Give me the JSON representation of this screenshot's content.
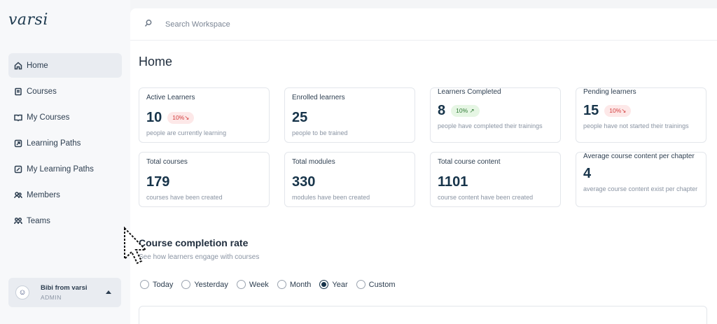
{
  "app": {
    "logo": "varsi"
  },
  "sidebar": {
    "items": [
      {
        "label": "Home",
        "icon": "home-icon",
        "active": true
      },
      {
        "label": "Courses",
        "icon": "book-icon"
      },
      {
        "label": "My Courses",
        "icon": "open-book-icon"
      },
      {
        "label": "Learning Paths",
        "icon": "path-icon"
      },
      {
        "label": "My Learning Paths",
        "icon": "path-book-icon"
      },
      {
        "label": "Members",
        "icon": "members-icon"
      },
      {
        "label": "Teams",
        "icon": "teams-icon"
      }
    ],
    "user": {
      "name": "Bibi from varsi",
      "role": "ADMIN"
    }
  },
  "search": {
    "placeholder": "Search Workspace"
  },
  "page": {
    "title": "Home"
  },
  "cards": [
    {
      "label": "Active Learners",
      "value": "10",
      "badge": "10%↘",
      "badge_tone": "red",
      "desc": "people are currently learning"
    },
    {
      "label": "Enrolled learners",
      "value": "25",
      "desc": "people to be trained"
    },
    {
      "label": "Learners Completed",
      "value": "8",
      "badge": "10% ↗",
      "badge_tone": "green",
      "desc": "people have completed their trainings"
    },
    {
      "label": "Pending learners",
      "value": "15",
      "badge": "10%↘",
      "badge_tone": "red",
      "desc": "people have not started their trainings"
    },
    {
      "label": "Total courses",
      "value": "179",
      "desc": "courses have been created"
    },
    {
      "label": "Total modules",
      "value": "330",
      "desc": "modules have been created"
    },
    {
      "label": "Total course content",
      "value": "1101",
      "desc": "course content have been created"
    },
    {
      "label": "Average course content per chapter",
      "value": "4",
      "desc": "average course content exist per chapter"
    }
  ],
  "completion": {
    "title": "Course completion rate",
    "subtitle": "See how learners engage with courses",
    "ranges": [
      "Today",
      "Yesterday",
      "Week",
      "Month",
      "Year",
      "Custom"
    ],
    "selected": "Year"
  },
  "colors": {
    "brand": "#17344a",
    "badge_red": "#d23b3b",
    "badge_green": "#2f7a35"
  }
}
